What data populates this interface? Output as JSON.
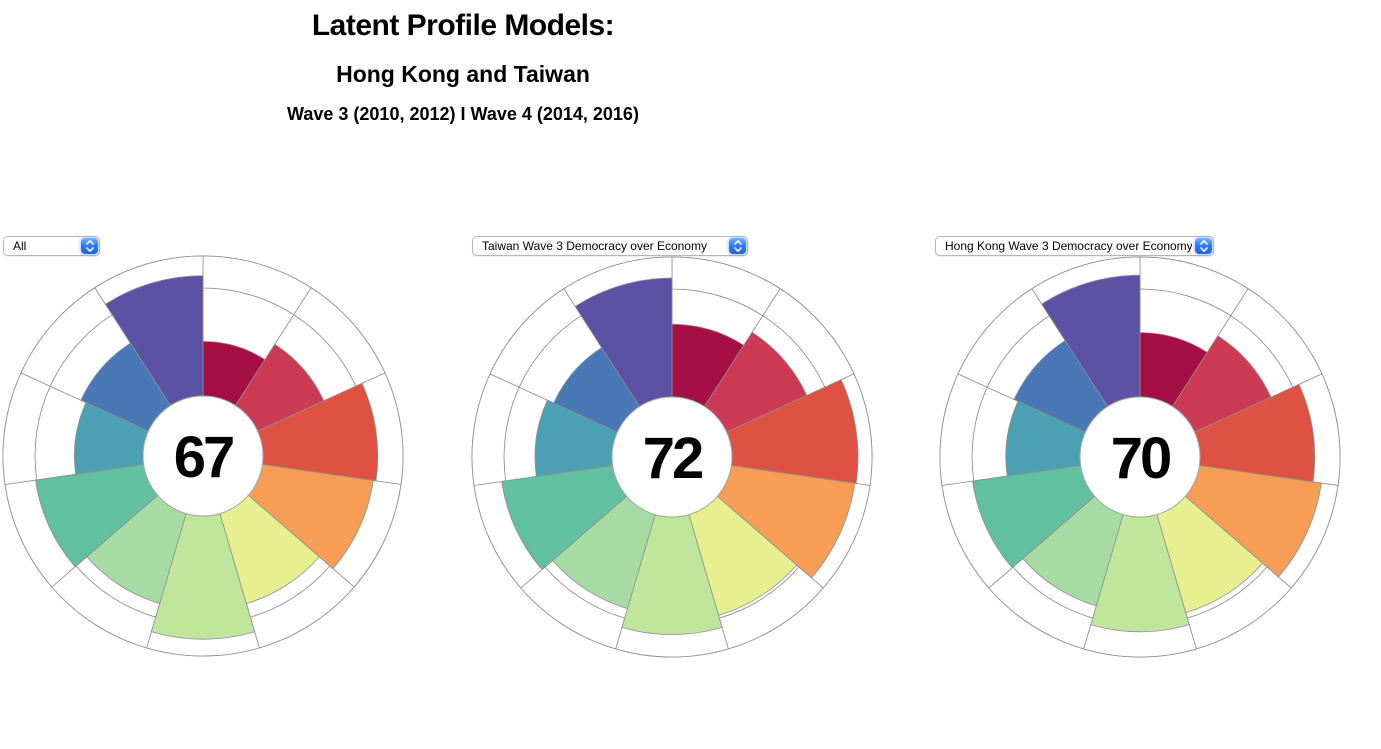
{
  "header": {
    "title": "Latent Profile Models:",
    "subtitle": "Hong Kong and Taiwan",
    "wave_line": "Wave 3 (2010, 2012) I Wave 4 (2014, 2016)"
  },
  "palette": [
    "#a50f45",
    "#cd3a54",
    "#df5142",
    "#f89d55",
    "#e7ef8e",
    "#c0e69c",
    "#a6dba3",
    "#60c0a0",
    "#4ba0b4",
    "#4878b5",
    "#5c52a5"
  ],
  "chart_style": {
    "outline_color": "#8f8f8f",
    "background": "#ffffff",
    "score_color": "#000000"
  },
  "chart_data": [
    {
      "type": "pie",
      "subtype": "aster-polar-area",
      "selected_filter": "All",
      "center_score": 67,
      "scale_min": 0,
      "scale_max": 100,
      "values": [
        39,
        52,
        82,
        80,
        67,
        88,
        67,
        78,
        49,
        53,
        86
      ]
    },
    {
      "type": "pie",
      "subtype": "aster-polar-area",
      "selected_filter": "Taiwan Wave 3 Democracy over Economy",
      "center_score": 72,
      "scale_min": 0,
      "scale_max": 100,
      "values": [
        52,
        63,
        90,
        89,
        75,
        84,
        70,
        80,
        55,
        50,
        85
      ]
    },
    {
      "type": "pie",
      "subtype": "aster-polar-area",
      "selected_filter": "Hong Kong Wave 3 Democracy over Economy",
      "center_score": 70,
      "scale_min": 0,
      "scale_max": 100,
      "values": [
        46,
        60,
        82,
        88,
        73,
        82,
        68,
        78,
        53,
        56,
        87
      ]
    }
  ]
}
